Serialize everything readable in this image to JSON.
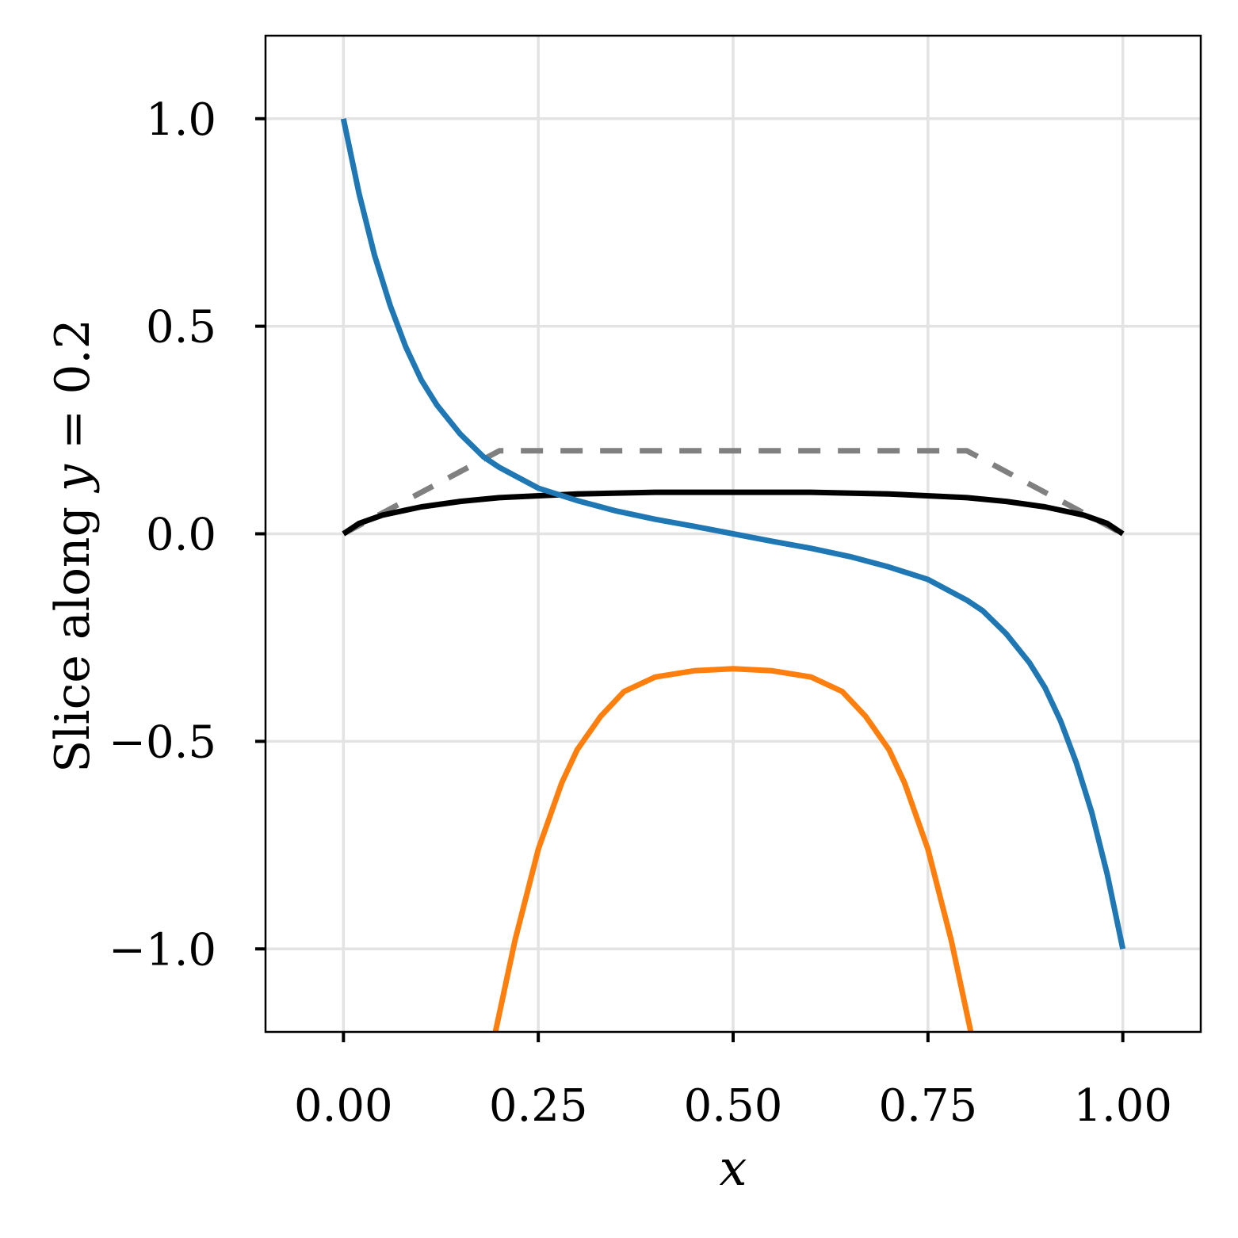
{
  "chart_data": {
    "type": "line",
    "title": "",
    "xlabel": "x",
    "ylabel_prefix": "Slice along ",
    "ylabel_var": "y",
    "ylabel_suffix": " = 0.2",
    "xlim": [
      -0.1,
      1.1
    ],
    "ylim": [
      -1.2,
      1.2
    ],
    "grid": true,
    "x_ticks": [
      0.0,
      0.25,
      0.5,
      0.75,
      1.0
    ],
    "x_tick_labels": [
      "0.00",
      "0.25",
      "0.50",
      "0.75",
      "1.00"
    ],
    "y_ticks": [
      -1.0,
      -0.5,
      0.0,
      0.5,
      1.0
    ],
    "y_tick_labels": [
      "−1.0",
      "−0.5",
      "0.0",
      "0.5",
      "1.0"
    ],
    "series": [
      {
        "color": "#808080",
        "style": "dashed",
        "x": [
          0.0,
          0.2,
          0.8,
          1.0
        ],
        "y": [
          0.0,
          0.2,
          0.2,
          0.0
        ]
      },
      {
        "color": "#000000",
        "style": "solid",
        "x": [
          0.0,
          0.02,
          0.05,
          0.1,
          0.15,
          0.2,
          0.3,
          0.4,
          0.5,
          0.6,
          0.7,
          0.8,
          0.85,
          0.9,
          0.95,
          0.98,
          1.0
        ],
        "y": [
          0.0,
          0.025,
          0.045,
          0.065,
          0.078,
          0.087,
          0.096,
          0.1,
          0.1,
          0.1,
          0.096,
          0.087,
          0.078,
          0.065,
          0.045,
          0.025,
          0.0
        ]
      },
      {
        "color": "#1f77b4",
        "style": "solid",
        "x": [
          0.0,
          0.02,
          0.04,
          0.06,
          0.08,
          0.1,
          0.12,
          0.15,
          0.18,
          0.2,
          0.25,
          0.3,
          0.35,
          0.4,
          0.45,
          0.5,
          0.55,
          0.6,
          0.65,
          0.7,
          0.75,
          0.8,
          0.82,
          0.85,
          0.88,
          0.9,
          0.92,
          0.94,
          0.96,
          0.98,
          1.0
        ],
        "y": [
          1.0,
          0.82,
          0.67,
          0.55,
          0.45,
          0.37,
          0.31,
          0.24,
          0.185,
          0.16,
          0.11,
          0.08,
          0.055,
          0.035,
          0.018,
          0.0,
          -0.018,
          -0.035,
          -0.055,
          -0.08,
          -0.11,
          -0.16,
          -0.185,
          -0.24,
          -0.31,
          -0.37,
          -0.45,
          -0.55,
          -0.67,
          -0.82,
          -1.0
        ]
      },
      {
        "color": "#ff7f0e",
        "style": "solid",
        "x": [
          0.195,
          0.22,
          0.25,
          0.28,
          0.3,
          0.33,
          0.36,
          0.4,
          0.45,
          0.5,
          0.55,
          0.6,
          0.64,
          0.67,
          0.7,
          0.72,
          0.75,
          0.78,
          0.805
        ],
        "y": [
          -1.2,
          -0.98,
          -0.76,
          -0.6,
          -0.52,
          -0.44,
          -0.38,
          -0.345,
          -0.33,
          -0.325,
          -0.33,
          -0.345,
          -0.38,
          -0.44,
          -0.52,
          -0.6,
          -0.76,
          -0.98,
          -1.2
        ]
      }
    ]
  }
}
